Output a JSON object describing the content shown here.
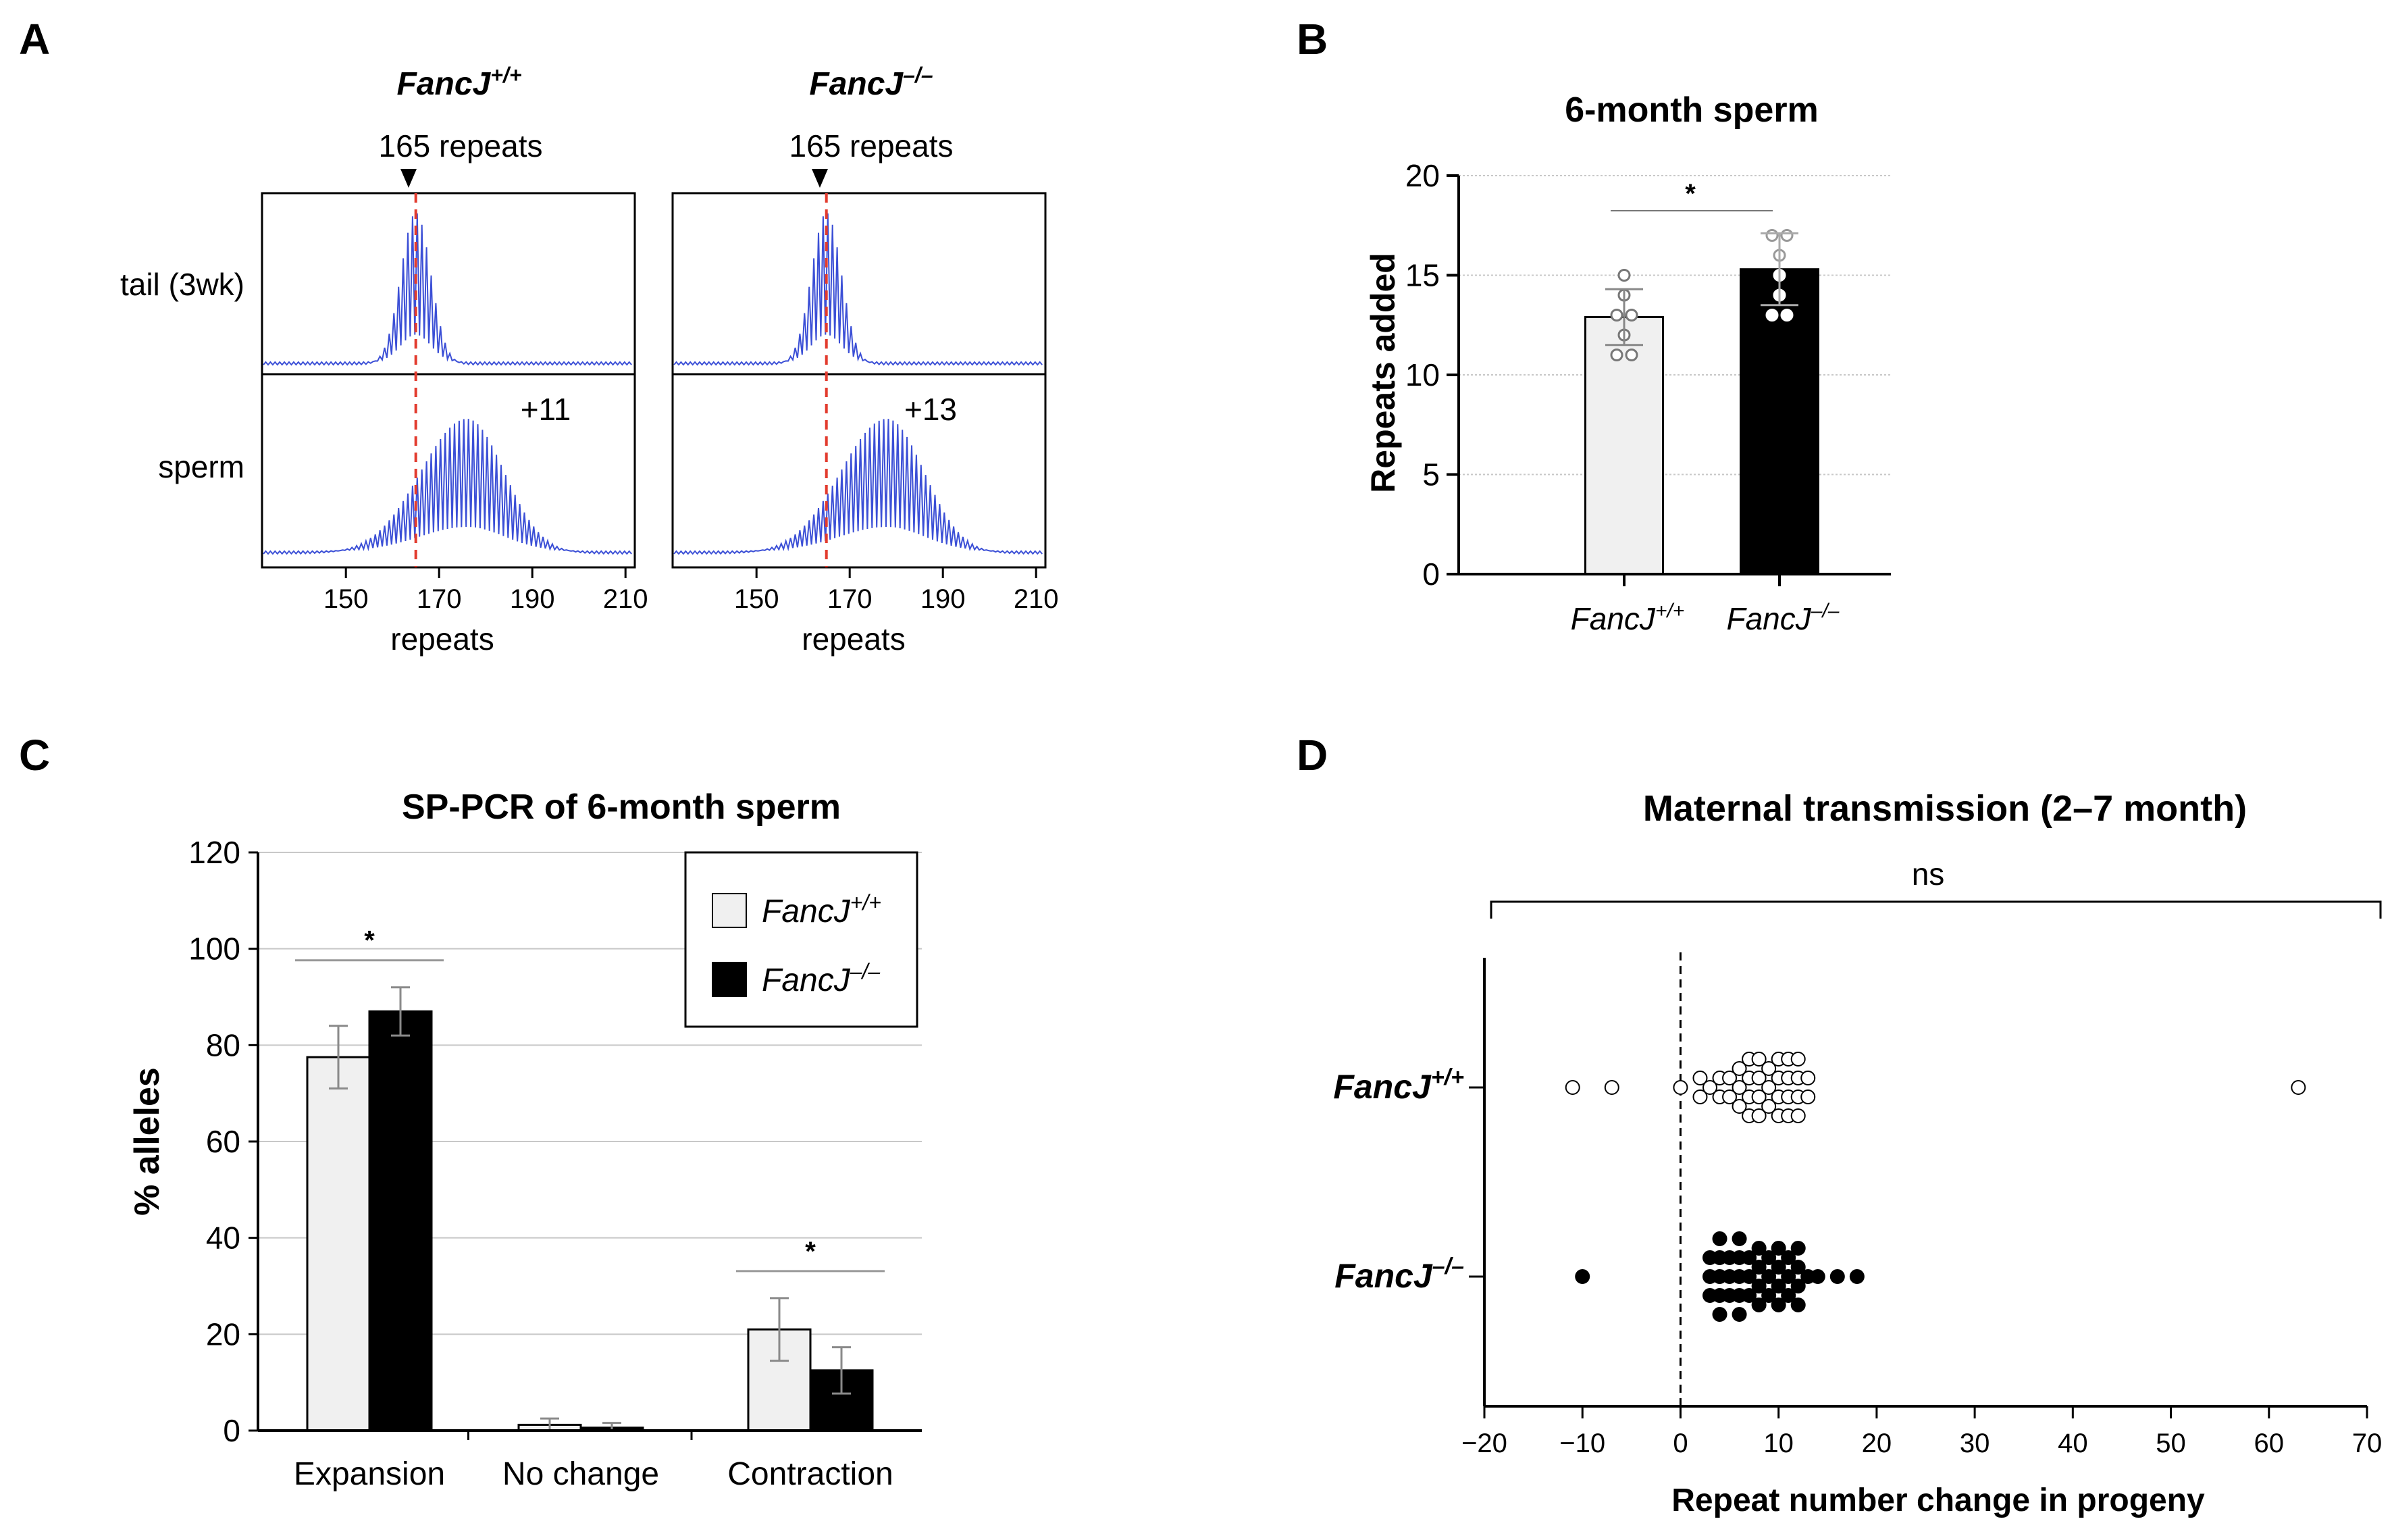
{
  "panel_letters": {
    "A": "A",
    "B": "B",
    "C": "C",
    "D": "D"
  },
  "colors": {
    "trace": "#3b4fd6",
    "dashed": "#e23b2e",
    "wt_bar": "#f0f0f0",
    "ko_bar": "#000000",
    "grid": "#c8c8c8",
    "err": "#8a8a8a"
  },
  "chart_data": [
    {
      "panel": "A",
      "type": "line",
      "genotypes": [
        {
          "label_base": "FancJ",
          "label_sup": "+/+",
          "marker": "165 repeats",
          "change_label": "+11",
          "sperm_shift": 11
        },
        {
          "label_base": "FancJ",
          "label_sup": "–/–",
          "marker": "165 repeats",
          "change_label": "+13",
          "sperm_shift": 13
        }
      ],
      "row_labels": [
        "tail (3wk)",
        "sperm"
      ],
      "xlabel": "repeats",
      "xlim": [
        132,
        212
      ],
      "xticks": [
        150,
        170,
        190,
        210
      ],
      "marker_x": 165,
      "tail_peak": 165,
      "sperm_peak_wt": 176,
      "sperm_peak_ko": 178
    },
    {
      "panel": "B",
      "type": "bar",
      "title": "6-month sperm",
      "ylabel": "Repeats added",
      "ylim": [
        0,
        20
      ],
      "yticks": [
        0,
        5,
        10,
        15,
        20
      ],
      "categories": [
        {
          "base": "FancJ",
          "sup": "+/+"
        },
        {
          "base": "FancJ",
          "sup": "–/–"
        }
      ],
      "values": [
        12.9,
        15.3
      ],
      "sd": [
        1.4,
        1.8
      ],
      "points": [
        [
          15,
          14,
          13,
          13,
          12,
          11,
          11
        ],
        [
          17,
          17,
          16,
          15,
          14,
          13,
          13
        ]
      ],
      "significance": "*"
    },
    {
      "panel": "C",
      "type": "bar",
      "title": "SP-PCR of 6-month sperm",
      "ylabel": "% alleles",
      "ylim": [
        0,
        120
      ],
      "yticks": [
        0,
        20,
        40,
        60,
        80,
        100,
        120
      ],
      "categories": [
        "Expansion",
        "No change",
        "Contraction"
      ],
      "series": [
        {
          "name": {
            "base": "FancJ",
            "sup": "+/+"
          },
          "values": [
            77.5,
            1.2,
            21
          ],
          "err": [
            6.5,
            1.3,
            6.5
          ]
        },
        {
          "name": {
            "base": "FancJ",
            "sup": "–/–"
          },
          "values": [
            87,
            0.6,
            12.5
          ],
          "err": [
            5,
            1,
            4.8
          ]
        }
      ],
      "significance": [
        "*",
        "",
        "*"
      ],
      "legend": "top-right"
    },
    {
      "panel": "D",
      "type": "scatter",
      "title": "Maternal transmission (2–7 month)",
      "xlabel": "Repeat number change in progeny",
      "xlim": [
        -20,
        70
      ],
      "xticks": [
        -20,
        -10,
        0,
        10,
        20,
        30,
        40,
        50,
        60,
        70
      ],
      "groups": [
        {
          "base": "FancJ",
          "sup": "+/+",
          "values": [
            -11,
            -7,
            0,
            2,
            2,
            3,
            4,
            4,
            5,
            5,
            6,
            6,
            6,
            7,
            7,
            7,
            7,
            8,
            8,
            8,
            8,
            9,
            9,
            9,
            10,
            10,
            10,
            10,
            11,
            11,
            11,
            11,
            12,
            12,
            12,
            12,
            13,
            13,
            63
          ]
        },
        {
          "base": "FancJ",
          "sup": "–/–",
          "values": [
            -10,
            3,
            3,
            3,
            4,
            4,
            4,
            4,
            4,
            5,
            5,
            5,
            6,
            6,
            6,
            6,
            6,
            7,
            7,
            7,
            8,
            8,
            8,
            8,
            9,
            9,
            9,
            10,
            10,
            10,
            10,
            11,
            11,
            11,
            12,
            12,
            12,
            12,
            13,
            14,
            16,
            18
          ]
        }
      ],
      "significance": "ns"
    }
  ]
}
